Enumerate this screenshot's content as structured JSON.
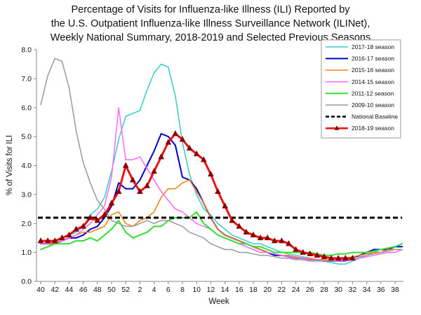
{
  "chart_data": {
    "type": "line",
    "title_lines": [
      "Percentage of Visits for Influenza-like Illness (ILI) Reported by",
      "the U.S. Outpatient Influenza-like Illness Surveillance Network (ILINet),",
      "Weekly National Summary, 2018-2019 and Selected Previous Seasons"
    ],
    "xlabel": "Week",
    "ylabel": "% of Visits for ILI",
    "ylim": [
      0,
      8
    ],
    "yticks": [
      "0.0",
      "1.0",
      "2.0",
      "3.0",
      "4.0",
      "5.0",
      "6.0",
      "7.0",
      "8.0"
    ],
    "x_tick_labels": [
      "40",
      "42",
      "44",
      "46",
      "48",
      "50",
      "52",
      "2",
      "4",
      "6",
      "8",
      "10",
      "12",
      "14",
      "16",
      "18",
      "20",
      "22",
      "24",
      "26",
      "28",
      "30",
      "32",
      "34",
      "36",
      "38"
    ],
    "grid": false,
    "legend_position": "top-right",
    "series": [
      {
        "name": "2017-18 season",
        "color": "#33cccc",
        "width": 1.5,
        "marker": false,
        "dash": false,
        "values": [
          1.3,
          1.3,
          1.4,
          1.5,
          1.6,
          1.7,
          1.9,
          2.3,
          2.5,
          2.9,
          3.8,
          4.9,
          5.7,
          5.8,
          5.9,
          6.6,
          7.2,
          7.5,
          7.4,
          6.4,
          4.8,
          3.7,
          3.0,
          2.5,
          2.3,
          2.0,
          1.8,
          1.6,
          1.5,
          1.4,
          1.3,
          1.3,
          1.2,
          1.1,
          1.0,
          0.95,
          0.9,
          0.85,
          0.8,
          0.75,
          0.7,
          0.65,
          0.6,
          0.6,
          0.7,
          0.8,
          0.9,
          1.0,
          1.1,
          1.1,
          1.2,
          1.2
        ]
      },
      {
        "name": "2016-17 season",
        "color": "#0000cc",
        "width": 2,
        "marker": false,
        "dash": false,
        "values": [
          1.3,
          1.3,
          1.3,
          1.4,
          1.5,
          1.5,
          1.6,
          1.8,
          1.9,
          2.2,
          2.6,
          3.4,
          3.2,
          3.2,
          3.5,
          4.0,
          4.5,
          5.1,
          5.0,
          4.7,
          3.6,
          3.5,
          3.2,
          2.7,
          2.2,
          1.8,
          1.6,
          1.5,
          1.4,
          1.3,
          1.2,
          1.1,
          1.0,
          0.9,
          0.9,
          0.85,
          0.8,
          0.8,
          0.75,
          0.75,
          0.7,
          0.7,
          0.7,
          0.7,
          0.8,
          0.9,
          1.0,
          1.1,
          1.1,
          1.1,
          1.2,
          1.2
        ]
      },
      {
        "name": "2015-16 season",
        "color": "#ff7f0e",
        "width": 1.5,
        "marker": false,
        "dash": false,
        "values": [
          1.3,
          1.3,
          1.3,
          1.4,
          1.5,
          1.6,
          1.7,
          1.7,
          1.8,
          1.9,
          2.3,
          2.4,
          2.0,
          1.9,
          2.1,
          2.2,
          2.4,
          2.9,
          3.2,
          3.2,
          3.4,
          3.5,
          3.1,
          2.7,
          2.2,
          1.8,
          1.6,
          1.5,
          1.4,
          1.3,
          1.2,
          1.1,
          1.0,
          0.95,
          0.9,
          0.9,
          0.85,
          0.8,
          0.8,
          0.75,
          0.75,
          0.75,
          0.75,
          0.8,
          0.85,
          0.9,
          0.95,
          1.0,
          1.0,
          1.1,
          1.1,
          1.1
        ]
      },
      {
        "name": "2014-15 season",
        "color": "#ff66ff",
        "width": 1.5,
        "marker": false,
        "dash": false,
        "values": [
          1.3,
          1.3,
          1.4,
          1.4,
          1.5,
          1.6,
          1.8,
          2.0,
          2.3,
          2.6,
          3.6,
          6.0,
          4.2,
          4.2,
          4.3,
          3.9,
          3.5,
          3.1,
          2.8,
          2.5,
          2.4,
          2.2,
          2.0,
          1.9,
          1.8,
          1.6,
          1.5,
          1.4,
          1.3,
          1.2,
          1.1,
          1.0,
          1.0,
          0.95,
          0.9,
          0.85,
          0.8,
          0.8,
          0.75,
          0.75,
          0.7,
          0.7,
          0.7,
          0.7,
          0.75,
          0.8,
          0.85,
          0.9,
          0.95,
          1.0,
          1.0,
          1.1
        ]
      },
      {
        "name": "2011-12 season",
        "color": "#33dd33",
        "width": 2,
        "marker": false,
        "dash": false,
        "values": [
          1.1,
          1.2,
          1.3,
          1.3,
          1.3,
          1.4,
          1.4,
          1.5,
          1.4,
          1.6,
          1.8,
          2.1,
          1.7,
          1.5,
          1.6,
          1.7,
          1.9,
          1.9,
          2.1,
          2.2,
          2.2,
          2.2,
          2.4,
          2.0,
          1.8,
          1.6,
          1.5,
          1.4,
          1.3,
          1.3,
          1.2,
          1.2,
          1.1,
          1.0,
          1.0,
          1.0,
          1.0,
          1.0,
          1.0,
          0.95,
          0.9,
          0.9,
          0.95,
          0.95,
          1.0,
          1.0,
          1.0,
          1.05,
          1.1,
          1.15,
          1.2,
          1.3
        ]
      },
      {
        "name": "2009-10 season",
        "color": "#999999",
        "width": 1.5,
        "marker": false,
        "dash": false,
        "values": [
          6.1,
          7.1,
          7.7,
          7.6,
          6.7,
          5.2,
          4.1,
          3.4,
          2.8,
          2.5,
          2.1,
          2.0,
          1.9,
          1.9,
          2.0,
          2.1,
          2.0,
          2.1,
          2.1,
          2.0,
          1.9,
          1.7,
          1.6,
          1.5,
          1.3,
          1.2,
          1.1,
          1.1,
          1.0,
          1.0,
          0.95,
          0.9,
          0.9,
          0.85,
          0.8,
          0.8,
          0.75,
          0.75,
          0.7,
          0.7,
          0.7,
          0.7,
          0.75,
          0.75,
          0.8,
          0.85,
          0.9,
          0.95,
          1.0,
          1.05,
          1.1,
          1.1
        ]
      },
      {
        "name": "National Baseline",
        "color": "#000000",
        "width": 3,
        "marker": false,
        "dash": true,
        "values": [
          2.2
        ]
      },
      {
        "name": "2018-19 season",
        "color": "#ee1111",
        "width": 3,
        "marker": true,
        "dash": false,
        "values": [
          1.4,
          1.4,
          1.4,
          1.5,
          1.6,
          1.8,
          1.9,
          2.2,
          2.1,
          2.3,
          2.7,
          3.1,
          4.0,
          3.5,
          3.1,
          3.3,
          3.8,
          4.3,
          4.8,
          5.1,
          4.9,
          4.6,
          4.4,
          4.2,
          3.7,
          3.1,
          2.6,
          2.1,
          1.9,
          1.7,
          1.6,
          1.5,
          1.5,
          1.4,
          1.4,
          1.3,
          1.1,
          1.0,
          0.95,
          0.9,
          0.85,
          0.8,
          0.8,
          0.8,
          0.8
        ]
      }
    ]
  }
}
